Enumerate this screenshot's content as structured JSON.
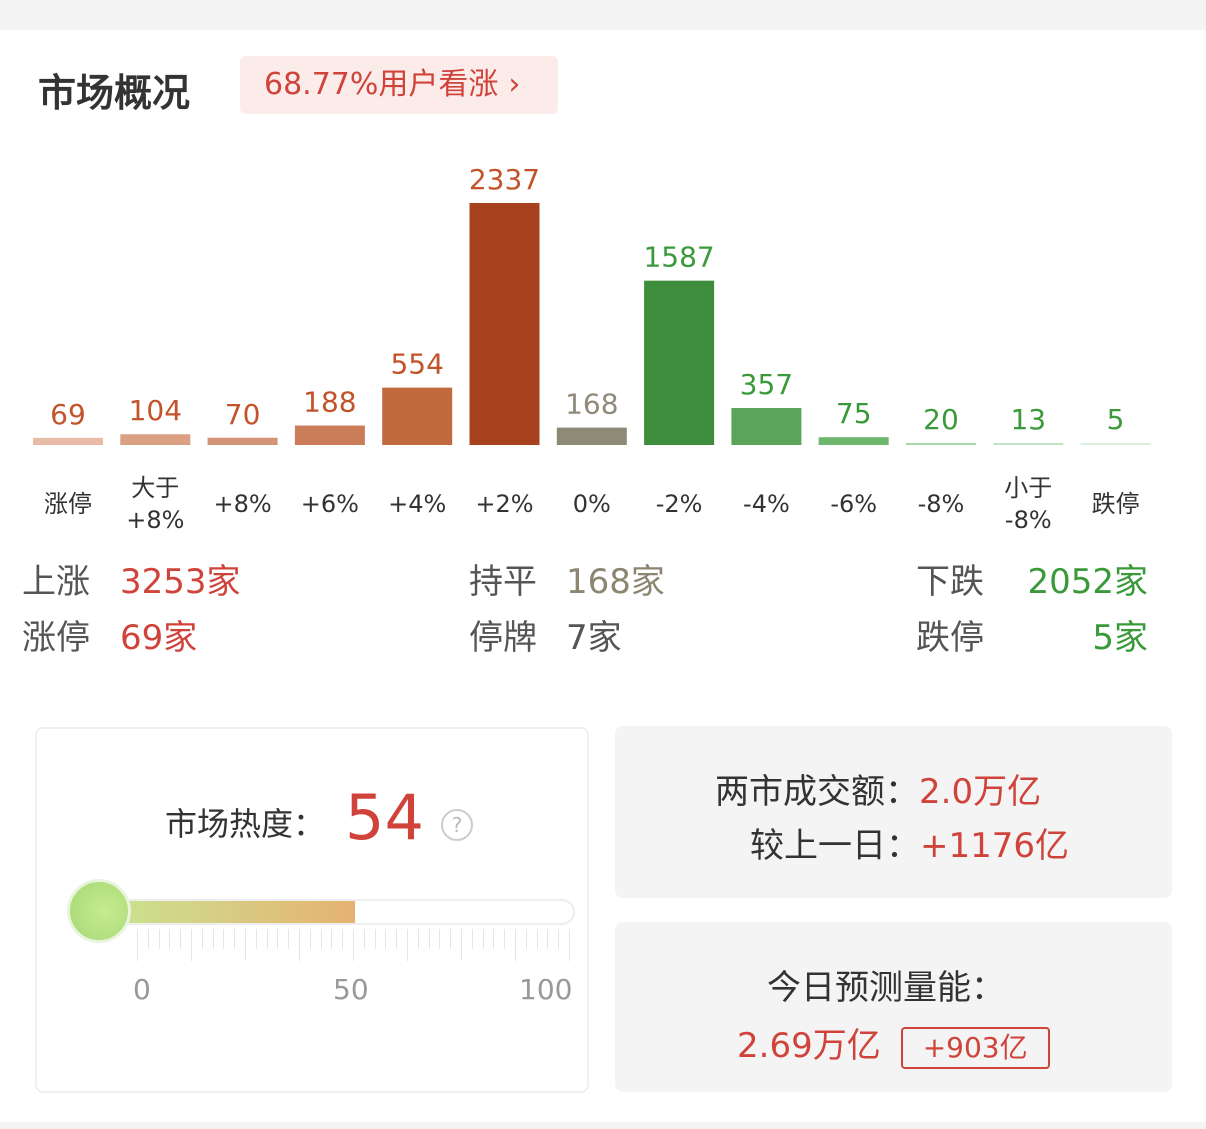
{
  "header": {
    "title": "市场概况",
    "sentiment": "68.77%用户看涨",
    "chevron": "›"
  },
  "chart_data": {
    "type": "bar",
    "categories": [
      "涨停",
      "大于\n+8%",
      "+8%",
      "+6%",
      "+4%",
      "+2%",
      "0%",
      "-2%",
      "-4%",
      "-6%",
      "-8%",
      "小于\n-8%",
      "跌停"
    ],
    "values": [
      69,
      104,
      70,
      188,
      554,
      2337,
      168,
      1587,
      357,
      75,
      20,
      13,
      5
    ],
    "colors": [
      "#e8bba7",
      "#dba083",
      "#d49477",
      "#cb7d5a",
      "#c06a3e",
      "#a8411d",
      "#8f8a78",
      "#3d8d3d",
      "#5aa55a",
      "#6db66d",
      "#a8d6a8",
      "#c3e2c3",
      "#dcefdc"
    ],
    "label_colors": [
      "#c3532a",
      "#c3532a",
      "#c3532a",
      "#c3532a",
      "#c3532a",
      "#c3532a",
      "#8f8a78",
      "#3a9a3a",
      "#3a9a3a",
      "#3a9a3a",
      "#3a9a3a",
      "#3a9a3a",
      "#3a9a3a"
    ]
  },
  "stats": {
    "up_label": "上涨",
    "up_value": "3253家",
    "flat_label": "持平",
    "flat_value": "168家",
    "down_label": "下跌",
    "down_value": "2052家",
    "limit_up_label": "涨停",
    "limit_up_value": "69家",
    "suspended_label": "停牌",
    "suspended_value": "7家",
    "limit_down_label": "跌停",
    "limit_down_value": "5家"
  },
  "heat": {
    "label": "市场热度：",
    "value": "54",
    "level": 54,
    "help": "?",
    "scale": [
      "0",
      "50",
      "100"
    ]
  },
  "turnover": {
    "label": "两市成交额：",
    "value": "2.0万亿",
    "diff_label": "较上一日：",
    "diff_value": "+1176亿"
  },
  "forecast": {
    "label": "今日预测量能：",
    "value": "2.69万亿",
    "diff": "+903亿"
  }
}
